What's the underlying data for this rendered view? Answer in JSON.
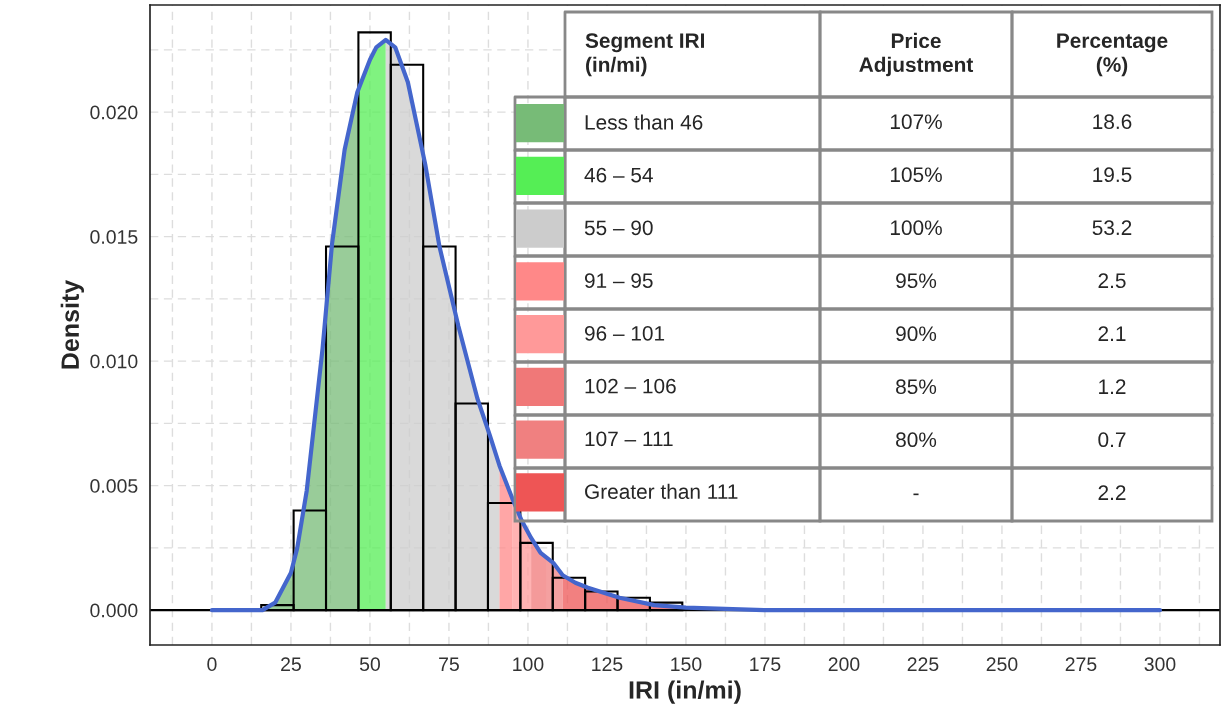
{
  "chart_data": {
    "type": "histogram",
    "xlabel": "IRI (in/mi)",
    "ylabel": "Density",
    "bins": [
      15.6,
      25.85,
      36.1,
      46.35,
      56.6,
      66.85,
      77.1,
      87.35,
      97.6,
      107.85,
      118.1,
      128.35,
      138.6,
      148.85
    ],
    "values": [
      0.0002,
      0.004,
      0.0146,
      0.0232,
      0.0219,
      0.0146,
      0.0083,
      0.0043,
      0.0027,
      0.0013,
      0.00075,
      0.0005,
      0.0003
    ],
    "series": [
      {
        "type": "area",
        "name": "Less than 46",
        "color": "#77bb77",
        "x": [
          16,
          20,
          25,
          27,
          30,
          35,
          38,
          42,
          46
        ],
        "values": [
          0,
          0.0003,
          0.0015,
          0.0025,
          0.0048,
          0.0105,
          0.0147,
          0.0185,
          0.0208
        ]
      },
      {
        "type": "area",
        "name": "46 – 54",
        "color": "#55ee55",
        "x": [
          46,
          50,
          52,
          55
        ],
        "values": [
          0.0208,
          0.0221,
          0.0226,
          0.0229
        ]
      },
      {
        "type": "area",
        "name": "55 – 90",
        "color": "#cccccc",
        "x": [
          55,
          58,
          62,
          67.5,
          72,
          78,
          84,
          88,
          91
        ],
        "values": [
          0.0229,
          0.0226,
          0.0212,
          0.0179,
          0.0146,
          0.0114,
          0.0085,
          0.007,
          0.0058
        ]
      },
      {
        "type": "area",
        "name": "91 – 95",
        "color": "#ff8888",
        "x": [
          91,
          95
        ],
        "values": [
          0.0058,
          0.0045
        ]
      },
      {
        "type": "area",
        "name": "96 – 101",
        "color": "#ff9999",
        "x": [
          95,
          98,
          101
        ],
        "values": [
          0.0045,
          0.0036,
          0.0029
        ]
      },
      {
        "type": "area",
        "name": "102 – 106",
        "color": "#f07878",
        "x": [
          101,
          104,
          106
        ],
        "values": [
          0.0029,
          0.0023,
          0.0021
        ]
      },
      {
        "type": "area",
        "name": "107 – 111",
        "color": "#f08080",
        "x": [
          106,
          108,
          111
        ],
        "values": [
          0.0021,
          0.0019,
          0.0014
        ]
      },
      {
        "type": "area",
        "name": "Greater than 111",
        "color": "#ee5555",
        "x": [
          111,
          115,
          119,
          124,
          129,
          140,
          150
        ],
        "values": [
          0.0014,
          0.0011,
          0.0009,
          0.0007,
          0.0005,
          0.0002,
          0.0001
        ]
      },
      {
        "type": "line",
        "color": "#4466cc",
        "x": [
          0,
          10,
          16,
          20,
          25,
          27,
          30,
          35,
          38,
          42,
          46,
          50,
          52,
          55,
          58,
          62,
          67.5,
          72,
          78,
          84,
          88,
          91,
          95,
          98,
          101,
          104,
          106,
          108,
          111,
          115,
          119,
          124,
          129,
          140,
          150,
          175,
          200,
          300
        ],
        "values": [
          0,
          0,
          0,
          0.0003,
          0.0015,
          0.0025,
          0.0048,
          0.0105,
          0.0147,
          0.0185,
          0.0208,
          0.0221,
          0.0226,
          0.0229,
          0.0226,
          0.0212,
          0.0179,
          0.0146,
          0.0114,
          0.0085,
          0.007,
          0.0058,
          0.0045,
          0.0036,
          0.0029,
          0.0023,
          0.0021,
          0.0019,
          0.0014,
          0.0011,
          0.0009,
          0.0007,
          0.0005,
          0.0002,
          0.0001,
          0,
          0,
          0
        ]
      }
    ],
    "annotations": [
      "Segment IRI\n(in/mi)",
      "Price\nAdjustment",
      "Percentage\n(%)",
      "107%",
      "18.6",
      "105%",
      "19.5",
      "100%",
      "53.2",
      "95%",
      "2.5",
      "90%",
      "2.1",
      "85%",
      "1.2",
      "80%",
      "0.7",
      "-",
      "2.2"
    ],
    "ref_lines": [
      {
        "axis": "y",
        "value": 0,
        "color": "#000000"
      }
    ],
    "xlim": [
      -19.6,
      319
    ],
    "ylim": [
      -0.0014,
      0.0243
    ],
    "xticks": [
      0,
      25,
      50,
      75,
      100,
      125,
      150,
      175,
      200,
      225,
      250,
      275,
      300
    ],
    "yticks": [
      {
        "value": 0,
        "label": "0.000"
      },
      {
        "value": 0.005,
        "label": "0.005"
      },
      {
        "value": 0.01,
        "label": "0.010"
      },
      {
        "value": 0.015,
        "label": "0.015"
      },
      {
        "value": 0.02,
        "label": "0.020"
      }
    ],
    "grid": true,
    "legend": "top"
  }
}
